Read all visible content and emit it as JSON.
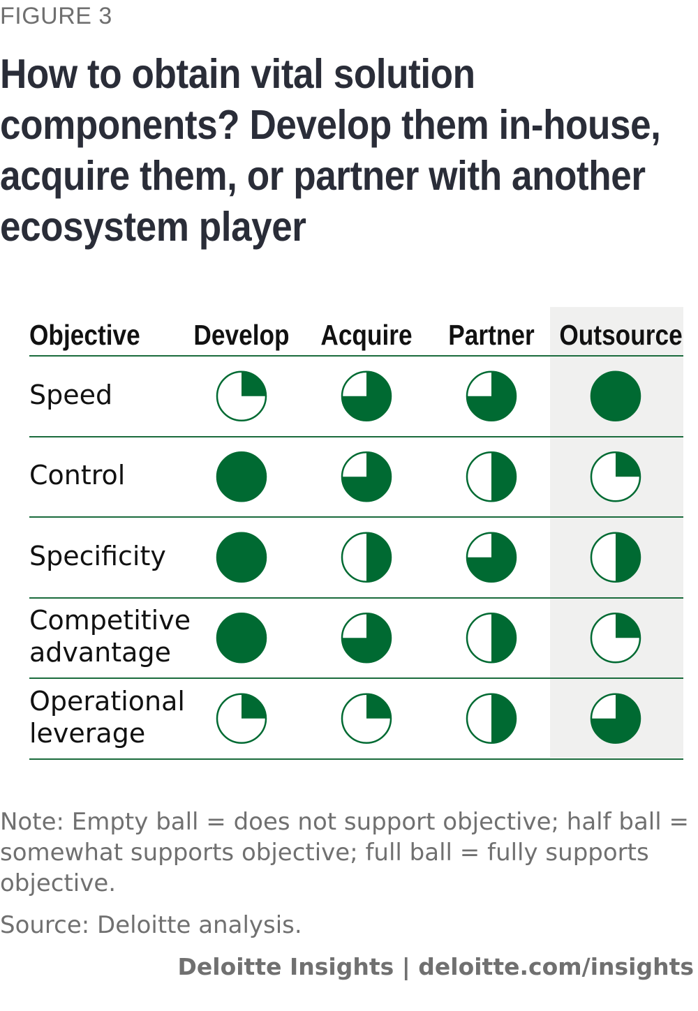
{
  "figure_label": "FIGURE 3",
  "title": "How to obtain vital solution components? Develop them in-house, acquire them, or partner with another ecosystem player",
  "colors": {
    "ball_fill": "#006a32",
    "ball_stroke": "#006a32",
    "rule": "#1a6b3c",
    "highlight_column_bg": "#f0f0ef"
  },
  "chart_data": {
    "type": "table",
    "columns": [
      "Objective",
      "Develop",
      "Acquire",
      "Partner",
      "Outsource"
    ],
    "highlighted_column": "Outsource",
    "rows": [
      {
        "objective": [
          "Speed"
        ],
        "values": [
          0.25,
          0.75,
          0.75,
          1.0
        ]
      },
      {
        "objective": [
          "Control"
        ],
        "values": [
          1.0,
          0.75,
          0.5,
          0.25
        ]
      },
      {
        "objective": [
          "Specificity"
        ],
        "values": [
          1.0,
          0.5,
          0.75,
          0.5
        ]
      },
      {
        "objective": [
          "Competitive",
          "advantage"
        ],
        "values": [
          1.0,
          0.75,
          0.5,
          0.25
        ]
      },
      {
        "objective": [
          "Operational",
          "leverage"
        ],
        "values": [
          0.25,
          0.25,
          0.5,
          0.75
        ]
      }
    ],
    "value_meaning": "fraction of ball filled"
  },
  "note": "Note: Empty ball = does not support objective; half ball = somewhat supports objective; full ball = fully supports objective.",
  "source": "Source: Deloitte analysis.",
  "credit": "Deloitte Insights | deloitte.com/insights"
}
